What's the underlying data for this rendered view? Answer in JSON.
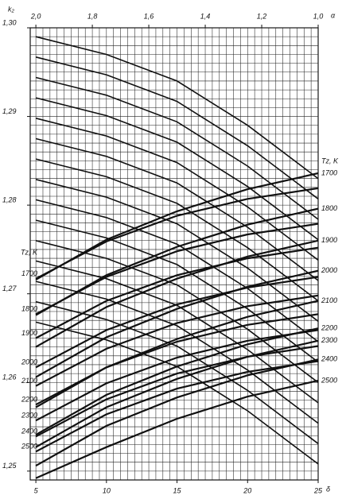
{
  "chart_data": {
    "type": "nomogram",
    "y_label": "k₂",
    "x_label": "δ",
    "x2_label": "α",
    "series_label": "Tz, K",
    "xlim": [
      4.6,
      25
    ],
    "xticks": [
      5,
      10,
      15,
      20,
      25
    ],
    "x2lim": [
      2.02,
      1.0
    ],
    "x2ticks": [
      {
        "value": 2.0,
        "label": "2,0"
      },
      {
        "value": 1.8,
        "label": "1,8"
      },
      {
        "value": 1.6,
        "label": "1,6"
      },
      {
        "value": 1.4,
        "label": "1,4"
      },
      {
        "value": 1.2,
        "label": "1,2"
      },
      {
        "value": 1.0,
        "label": "1,0"
      }
    ],
    "ylim": [
      1.249,
      1.3
    ],
    "yticks": [
      {
        "value": 1.25,
        "label": "1,25"
      },
      {
        "value": 1.26,
        "label": "1,26"
      },
      {
        "value": 1.27,
        "label": "1,27"
      },
      {
        "value": 1.28,
        "label": "1,28"
      },
      {
        "value": 1.29,
        "label": "1,29"
      },
      {
        "value": 1.3,
        "label": "1,30"
      }
    ],
    "grid": true,
    "color": "#111111",
    "xgrid": [
      5,
      5.5,
      6,
      6.5,
      7,
      7.5,
      8,
      8.5,
      9,
      9.5,
      10,
      10.5,
      11,
      11.5,
      12,
      12.5,
      13,
      13.5,
      14,
      14.5,
      15,
      15.5,
      16,
      16.5,
      17,
      17.5,
      18,
      18.5,
      19,
      19.5,
      20,
      20.5,
      21,
      21.5,
      22,
      22.5,
      23,
      23.5,
      24,
      24.5,
      25
    ],
    "ygrid": [
      1.25,
      1.251,
      1.252,
      1.253,
      1.254,
      1.255,
      1.256,
      1.257,
      1.258,
      1.259,
      1.26,
      1.261,
      1.262,
      1.263,
      1.264,
      1.265,
      1.266,
      1.267,
      1.268,
      1.269,
      1.27,
      1.271,
      1.272,
      1.273,
      1.274,
      1.275,
      1.276,
      1.277,
      1.278,
      1.279,
      1.28,
      1.281,
      1.282,
      1.283,
      1.284,
      1.285,
      1.286,
      1.287,
      1.288,
      1.289,
      1.29,
      1.291,
      1.292,
      1.293,
      1.294,
      1.295,
      1.296,
      1.297,
      1.298,
      1.299,
      1.3
    ],
    "series": [
      {
        "name": "1700",
        "axis": "x",
        "x": [
          5,
          10,
          15,
          20,
          25
        ],
        "values": [
          1.2717,
          1.2759,
          1.2788,
          1.2807,
          1.2819
        ]
      },
      {
        "name": "1800",
        "axis": "x",
        "x": [
          5,
          10,
          15,
          20,
          25
        ],
        "values": [
          1.2677,
          1.2719,
          1.2748,
          1.2767,
          1.2779
        ]
      },
      {
        "name": "1900",
        "axis": "x",
        "x": [
          5,
          10,
          15,
          20,
          25
        ],
        "values": [
          1.265,
          1.2692,
          1.2721,
          1.274,
          1.2752
        ]
      },
      {
        "name": "2000",
        "axis": "x",
        "x": [
          5,
          10,
          15,
          20,
          25
        ],
        "values": [
          1.2617,
          1.2659,
          1.2688,
          1.2707,
          1.2719
        ]
      },
      {
        "name": "2100",
        "axis": "x",
        "x": [
          5,
          10,
          15,
          20,
          25
        ],
        "values": [
          1.2596,
          1.2638,
          1.2667,
          1.2686,
          1.2698
        ]
      },
      {
        "name": "2200",
        "axis": "x",
        "x": [
          5,
          10,
          15,
          20,
          25
        ],
        "values": [
          1.2575,
          1.2617,
          1.2646,
          1.2665,
          1.2677
        ]
      },
      {
        "name": "2300",
        "axis": "x",
        "x": [
          5,
          10,
          15,
          20,
          25
        ],
        "values": [
          1.2557,
          1.2599,
          1.2628,
          1.2647,
          1.2659
        ]
      },
      {
        "name": "2400",
        "axis": "x",
        "x": [
          5,
          10,
          15,
          20,
          25
        ],
        "values": [
          1.2539,
          1.2581,
          1.261,
          1.2629,
          1.2641
        ]
      },
      {
        "name": "2500",
        "axis": "x",
        "x": [
          5,
          10,
          15,
          20,
          25
        ],
        "values": [
          1.2522,
          1.2564,
          1.2593,
          1.2612,
          1.2624
        ]
      },
      {
        "name": "1700",
        "axis": "x2",
        "x": [
          2.0,
          1.75,
          1.5,
          1.25,
          1.0
        ],
        "values": [
          1.2716,
          1.2761,
          1.2793,
          1.2818,
          1.2836
        ]
      },
      {
        "name": "1800",
        "axis": "x2",
        "x": [
          2.0,
          1.75,
          1.5,
          1.25,
          1.0
        ],
        "values": [
          1.2676,
          1.2721,
          1.2753,
          1.2778,
          1.2796
        ]
      },
      {
        "name": "1900",
        "axis": "x2",
        "x": [
          2.0,
          1.75,
          1.5,
          1.25,
          1.0
        ],
        "values": [
          1.264,
          1.2685,
          1.2717,
          1.2742,
          1.276
        ]
      },
      {
        "name": "2000",
        "axis": "x2",
        "x": [
          2.0,
          1.75,
          1.5,
          1.25,
          1.0
        ],
        "values": [
          1.2606,
          1.2651,
          1.2683,
          1.2708,
          1.2726
        ]
      },
      {
        "name": "2100",
        "axis": "x2",
        "x": [
          2.0,
          1.75,
          1.5,
          1.25,
          1.0
        ],
        "values": [
          1.2572,
          1.2617,
          1.2649,
          1.2674,
          1.2692
        ]
      },
      {
        "name": "2200",
        "axis": "x2",
        "x": [
          2.0,
          1.75,
          1.5,
          1.25,
          1.0
        ],
        "values": [
          1.2541,
          1.2586,
          1.2618,
          1.2643,
          1.2661
        ]
      },
      {
        "name": "2300",
        "axis": "x2",
        "x": [
          2.0,
          1.75,
          1.5,
          1.25,
          1.0
        ],
        "values": [
          1.2527,
          1.2572,
          1.2604,
          1.2629,
          1.2647
        ]
      },
      {
        "name": "2400",
        "axis": "x2",
        "x": [
          2.0,
          1.75,
          1.5,
          1.25,
          1.0
        ],
        "values": [
          1.2506,
          1.2551,
          1.2583,
          1.2608,
          1.2626
        ]
      },
      {
        "name": "2500",
        "axis": "x2",
        "x": [
          2.0,
          1.75,
          1.5,
          1.25,
          1.0
        ],
        "values": [
          1.2492,
          1.2527,
          1.2559,
          1.2584,
          1.2602
        ]
      }
    ],
    "curve_x": [
      5,
      10,
      15,
      20,
      25
    ],
    "curves": [
      [
        1.299,
        1.297,
        1.294,
        1.289,
        1.283
      ],
      [
        1.2967,
        1.2947,
        1.2917,
        1.2867,
        1.2807
      ],
      [
        1.2944,
        1.2924,
        1.2894,
        1.2844,
        1.2784
      ],
      [
        1.2921,
        1.2901,
        1.2871,
        1.2821,
        1.2761
      ],
      [
        1.2898,
        1.2878,
        1.2848,
        1.2798,
        1.2738
      ],
      [
        1.2875,
        1.2855,
        1.2825,
        1.2775,
        1.2715
      ],
      [
        1.2852,
        1.2832,
        1.2802,
        1.2752,
        1.2692
      ],
      [
        1.2829,
        1.2809,
        1.2779,
        1.2729,
        1.2669
      ],
      [
        1.2806,
        1.2786,
        1.2756,
        1.2706,
        1.2646
      ],
      [
        1.2783,
        1.2763,
        1.2733,
        1.2683,
        1.2623
      ],
      [
        1.276,
        1.274,
        1.271,
        1.266,
        1.26
      ],
      [
        1.2737,
        1.2717,
        1.2687,
        1.2637,
        1.2577
      ],
      [
        1.2714,
        1.2694,
        1.2664,
        1.2614,
        1.2554
      ],
      [
        1.2691,
        1.2671,
        1.2641,
        1.2591,
        1.2531
      ],
      [
        1.2668,
        1.2648,
        1.2618,
        1.2568,
        1.2508
      ]
    ]
  }
}
